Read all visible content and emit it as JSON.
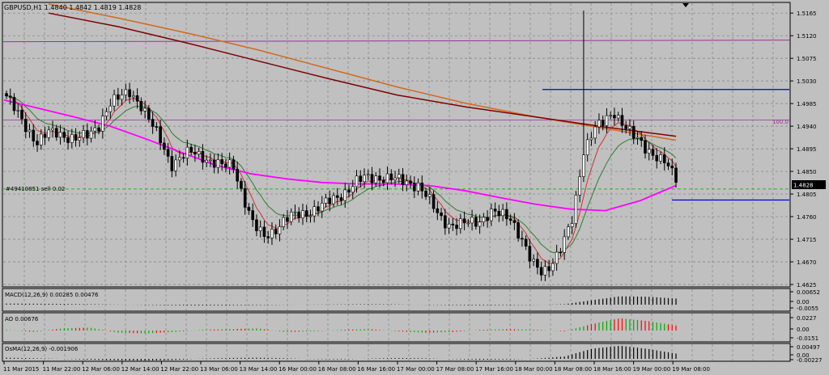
{
  "symbol_header": "GBPUSD,H1  1.4840 1.4842 1.4819 1.4828",
  "trade_label": "#49410851 sell 0.02",
  "level_label": "100.0",
  "current_price": "1.4828",
  "colors": {
    "background": "#c0c0c0",
    "bull_candle": "#ffffff",
    "bear_candle": "#000000",
    "ma_fast": "#cc3333",
    "ma_mid": "#2e7d32",
    "ma_magenta": "#ff00ff",
    "ma_orange": "#d2691e",
    "ma_maroon": "#800000",
    "hline_blue": "#0000cc",
    "hline_purple": "#993399",
    "ao_up": "#00aa00",
    "ao_down": "#ff0000"
  },
  "chart_data": {
    "type": "candlestick",
    "price_axis": [
      "1.5165",
      "1.5120",
      "1.5075",
      "1.5030",
      "1.4985",
      "1.4940",
      "1.4895",
      "1.4850",
      "1.4805",
      "1.4760",
      "1.4715",
      "1.4670",
      "1.4625"
    ],
    "ylim": [
      1.4625,
      1.5183
    ],
    "time_axis": [
      "11 Mar 2015",
      "11 Mar 22:00",
      "12 Mar 06:00",
      "12 Mar 14:00",
      "12 Mar 22:00",
      "13 Mar 06:00",
      "13 Mar 14:00",
      "16 Mar 00:00",
      "16 Mar 08:00",
      "16 Mar 16:00",
      "17 Mar 00:00",
      "17 Mar 08:00",
      "17 Mar 16:00",
      "18 Mar 00:00",
      "18 Mar 08:00",
      "18 Mar 16:00",
      "19 Mar 00:00",
      "19 Mar 08:00"
    ],
    "h_lines": [
      1.5108,
      1.5013,
      1.4952,
      1.4793
    ],
    "close_path": [
      1.5,
      1.4965,
      1.4935,
      1.491,
      1.4925,
      1.4925,
      1.492,
      1.4915,
      1.492,
      1.4945,
      1.4985,
      1.4995,
      1.501,
      1.4985,
      1.4945,
      1.491,
      1.4865,
      1.4878,
      1.4888,
      1.4882,
      1.4868,
      1.4858,
      1.4865,
      1.48,
      1.474,
      1.472,
      1.4735,
      1.4752,
      1.4762,
      1.4768,
      1.4775,
      1.4785,
      1.4798,
      1.4812,
      1.4828,
      1.4838,
      1.484,
      1.4835,
      1.4832,
      1.483,
      1.4822,
      1.4792,
      1.4762,
      1.4745,
      1.4742,
      1.4748,
      1.4754,
      1.4768,
      1.4762,
      1.4758,
      1.4718,
      1.4665,
      1.4648,
      1.4672,
      1.4702,
      1.4755,
      1.4892,
      1.4935,
      1.4945,
      1.4968,
      1.4945,
      1.4915,
      1.4895,
      1.4885,
      1.4868,
      1.4828
    ],
    "ma_magenta": [
      1.4992,
      1.4975,
      1.4958,
      1.494,
      1.4915,
      1.4888,
      1.4862,
      1.4845,
      1.4835,
      1.4828,
      1.4825,
      1.4825,
      1.4822,
      1.4812,
      1.4798,
      1.4785,
      1.4775,
      1.4772,
      1.4792,
      1.4822
    ],
    "ma_orange": [
      1.5183,
      1.5155,
      1.5125,
      1.5092,
      1.5055,
      1.5018,
      1.4985,
      1.4958,
      1.4935,
      1.4912
    ],
    "ma_maroon": [
      1.5165,
      1.5138,
      1.5105,
      1.507,
      1.5035,
      1.5002,
      1.4978,
      1.4958,
      1.4938,
      1.492
    ],
    "macd_label": "MACD(12,26,9) 0.00285 0.00476",
    "macd_axis": [
      "0.00652",
      "0.00",
      "-0.0055"
    ],
    "macd_hist": [
      0.0007,
      0.0006,
      0.0005,
      0.0003,
      0.0001,
      -0.0002,
      -0.0004,
      -0.0005,
      -0.0004,
      -0.0003,
      -0.0001,
      0.0001,
      0.0002,
      0.0003,
      0.0002,
      -0.0001,
      -0.0003,
      -0.0004,
      -0.0003,
      -0.0001,
      0.0003,
      0.0028,
      0.0052,
      0.0049,
      0.0038
    ],
    "ao_label": "AO 0.00676",
    "ao_axis": [
      "0.0227",
      "0.00",
      "-0.0151"
    ],
    "ao_hist": [
      0.001,
      -0.002,
      0.003,
      0.004,
      -0.003,
      -0.004,
      -0.002,
      0.001,
      0.002,
      0.003,
      -0.002,
      -0.001,
      0.001,
      0.002,
      -0.001,
      -0.003,
      -0.002,
      0.001,
      0.002,
      0.001,
      -0.001,
      0.009,
      0.017,
      0.013,
      0.007
    ],
    "osma_label": "OsMA(12,26,9) -0.001906",
    "osma_axis": [
      "0.00497",
      "0.00",
      "-0.00227"
    ],
    "osma_hist": [
      0.0004,
      0.0002,
      0.0,
      -0.0003,
      -0.0005,
      -0.0006,
      -0.0004,
      0.0001,
      0.0003,
      0.0004,
      0.0002,
      -0.0001,
      -0.0002,
      0.0001,
      0.0003,
      0.0002,
      -0.0001,
      -0.0003,
      -0.0002,
      0.0001,
      0.0008,
      0.0035,
      0.0045,
      0.0034,
      0.0018
    ]
  }
}
